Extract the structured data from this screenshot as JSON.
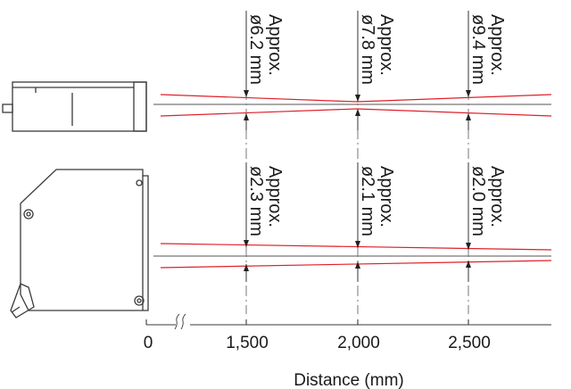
{
  "top_view": {
    "annotations": [
      {
        "line1": "Approx.",
        "line2": "ø6.2 mm"
      },
      {
        "line1": "Approx.",
        "line2": "ø7.8 mm"
      },
      {
        "line1": "Approx.",
        "line2": "ø9.4 mm"
      }
    ]
  },
  "side_view": {
    "annotations": [
      {
        "line1": "Approx.",
        "line2": "ø2.3 mm"
      },
      {
        "line1": "Approx.",
        "line2": "ø2.1 mm"
      },
      {
        "line1": "Approx.",
        "line2": "ø2.0 mm"
      }
    ]
  },
  "axis": {
    "ticks": [
      "0",
      "1,500",
      "2,000",
      "2,500"
    ],
    "title": "Distance (mm)"
  },
  "colors": {
    "beam": "#e0202a",
    "line": "#3a3a3a",
    "dim": "#777777"
  }
}
